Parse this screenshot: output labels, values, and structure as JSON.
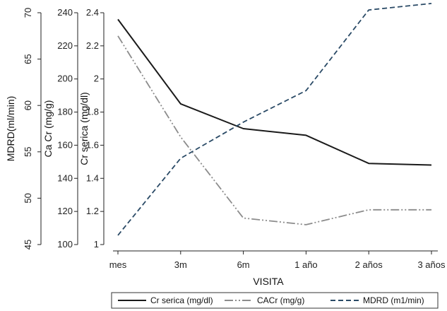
{
  "chart_data": {
    "type": "line",
    "title": "",
    "xlabel": "VISITA",
    "categories": [
      "mes",
      "3m",
      "6m",
      "1 año",
      "2 años",
      "3 años"
    ],
    "axes": {
      "mdrd": {
        "label": "MDRD(ml/min)",
        "ylim": [
          45,
          70
        ],
        "ticks": [
          45,
          50,
          55,
          60,
          65,
          70
        ],
        "rotated_ticks": true
      },
      "cacr": {
        "label": "Ca Cr (mg/g)",
        "ylim": [
          100,
          240
        ],
        "ticks": [
          100,
          120,
          140,
          160,
          180,
          200,
          220,
          240
        ]
      },
      "cr": {
        "label": "Cr serica (mg/dl)",
        "ylim": [
          1,
          2.4
        ],
        "ticks": [
          1,
          1.2,
          1.4,
          1.6,
          1.8,
          2,
          2.2,
          2.4
        ],
        "tick_labels": [
          "1",
          "1.2",
          "1.4",
          "1.6",
          "1.8",
          "2",
          "2.2",
          "2.4"
        ]
      }
    },
    "series": [
      {
        "name": "Cr serica (mg/dl)",
        "axis": "cr",
        "values": [
          2.36,
          1.85,
          1.7,
          1.66,
          1.49,
          1.48
        ],
        "color": "#1a1a1a",
        "dash": "solid"
      },
      {
        "name": "CACr (mg/g)",
        "axis": "cacr",
        "values": [
          226,
          165,
          116,
          112,
          121,
          121
        ],
        "color": "#8c8c8c",
        "dash": "dashdotdot"
      },
      {
        "name": "MDRD (m1/min)",
        "axis": "mdrd",
        "values": [
          46.0,
          54.3,
          58.2,
          61.6,
          70.3,
          71.0
        ],
        "color": "#2a4a66",
        "dash": "dashed"
      }
    ],
    "grid": false,
    "legend_position": "bottom"
  }
}
